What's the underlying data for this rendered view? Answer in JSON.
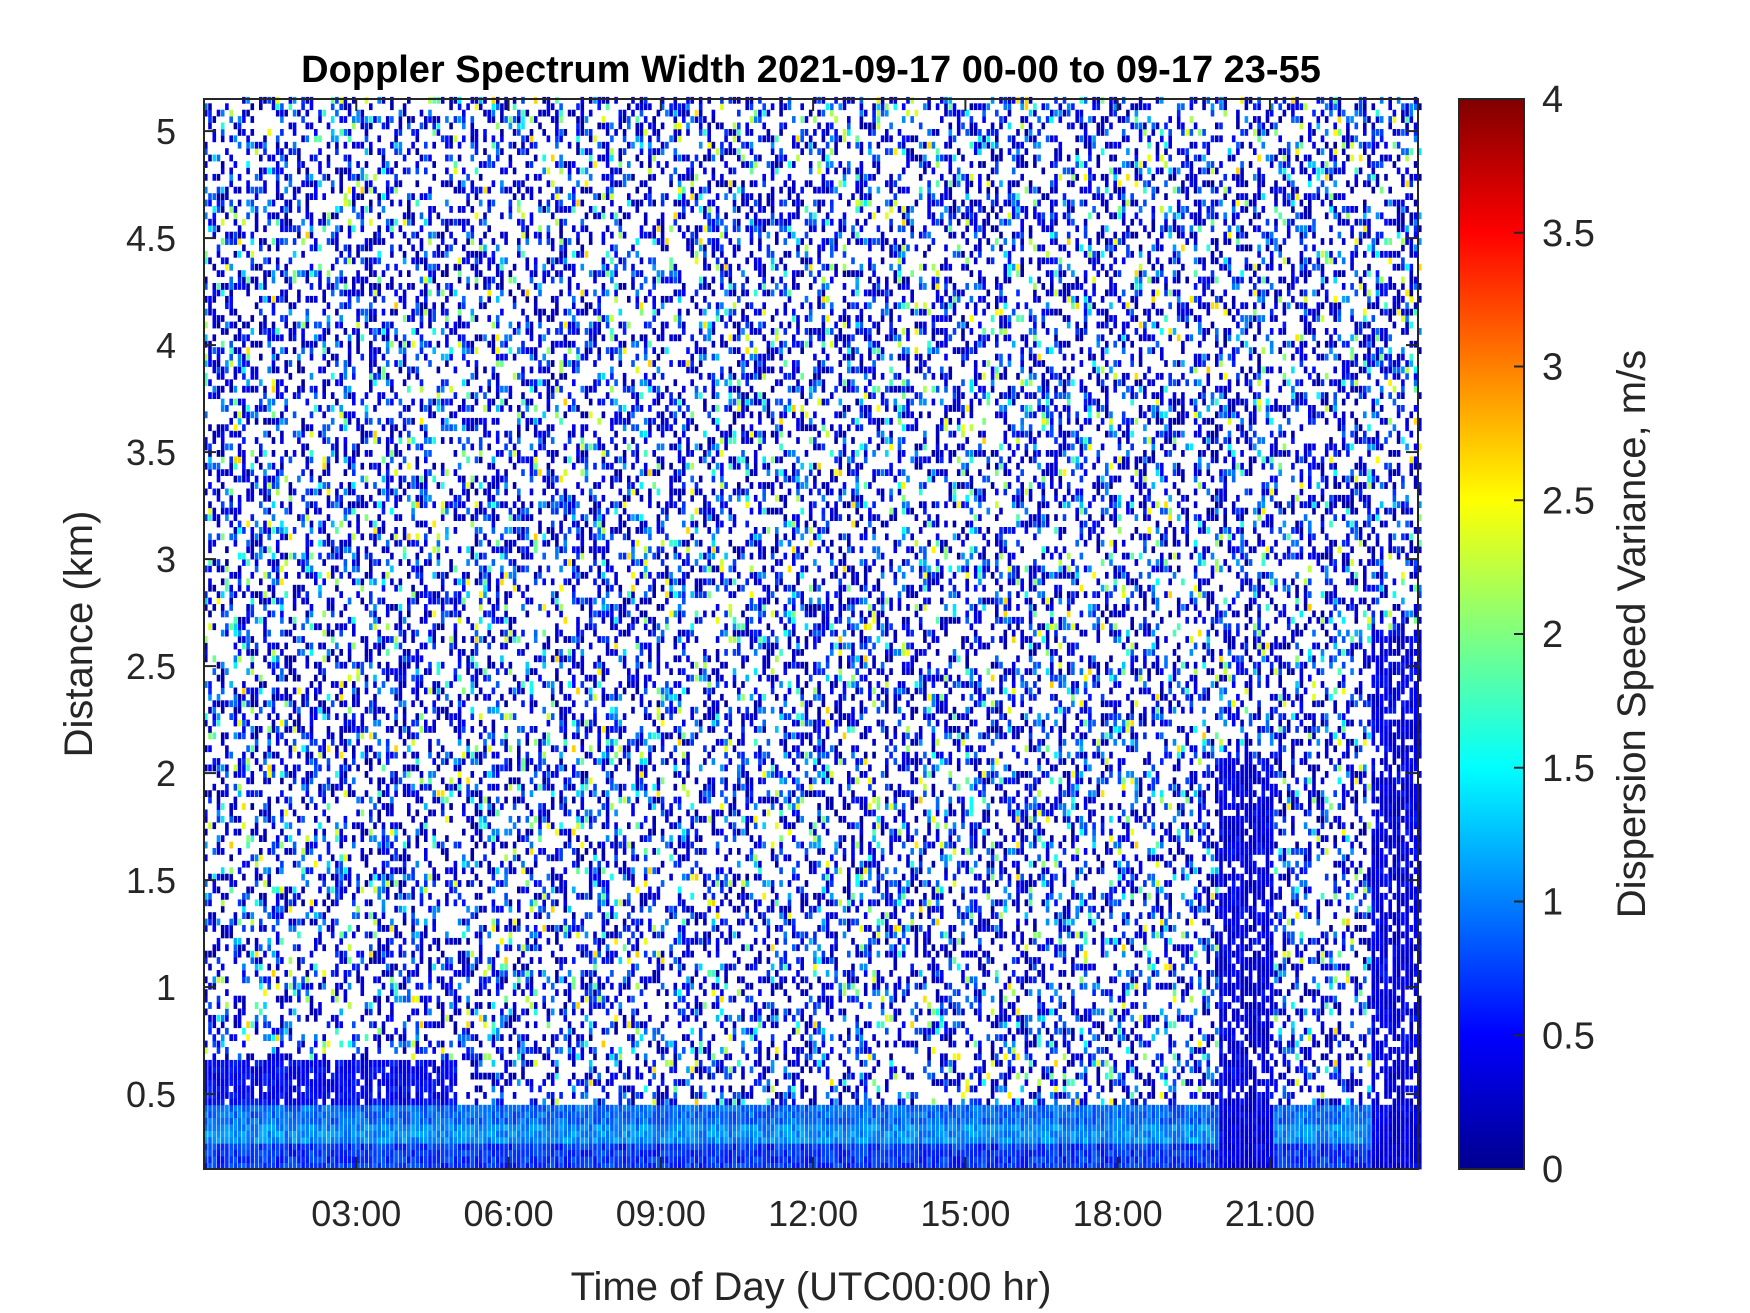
{
  "chart_data": {
    "type": "heatmap",
    "title": "Doppler Spectrum Width 2021-09-17 00-00 to 09-17 23-55",
    "xlabel": "Time of Day (UTC00:00 hr)",
    "ylabel": "Distance (km)",
    "colorbar_label": "Dispersion Speed Variance, m/s",
    "colormap": "jet",
    "x_range_hours": [
      0,
      23.9167
    ],
    "x_step_minutes": 5,
    "y_range_km": [
      0.15,
      5.15
    ],
    "clim": [
      0,
      4
    ],
    "x_ticks": [
      "03:00",
      "06:00",
      "09:00",
      "12:00",
      "15:00",
      "18:00",
      "21:00"
    ],
    "y_ticks": [
      "0.5",
      "1",
      "1.5",
      "2",
      "2.5",
      "3",
      "3.5",
      "4",
      "4.5",
      "5"
    ],
    "colorbar_ticks": [
      "0",
      "0.5",
      "1",
      "1.5",
      "2",
      "2.5",
      "3",
      "3.5",
      "4"
    ],
    "grid": false,
    "regions": [
      {
        "description": "near-surface layer",
        "distance_km": [
          0.15,
          0.25
        ],
        "value_m_s": 0.7
      },
      {
        "description": "boundary layer band",
        "distance_km": [
          0.25,
          0.35
        ],
        "value_m_s": 1.05
      },
      {
        "description": "boundary layer band",
        "distance_km": [
          0.35,
          0.45
        ],
        "value_m_s": 0.9
      },
      {
        "description": "shallow layer 00:00-05:00",
        "distance_km": [
          0.45,
          0.65
        ],
        "value_m_s": 0.5
      },
      {
        "description": "dense column ~20:00-21:00",
        "time_hr": [
          20.0,
          21.0
        ],
        "distance_km": [
          0.15,
          2.05
        ],
        "value_m_s": 0.4
      },
      {
        "description": "dense column ~23:00-24:00",
        "time_hr": [
          23.0,
          23.92
        ],
        "distance_km": [
          0.15,
          2.65
        ],
        "value_m_s": 0.4
      },
      {
        "description": "sparse scatter aloft",
        "distance_km": [
          0.65,
          5.15
        ],
        "value_m_s": 0.5
      }
    ]
  }
}
